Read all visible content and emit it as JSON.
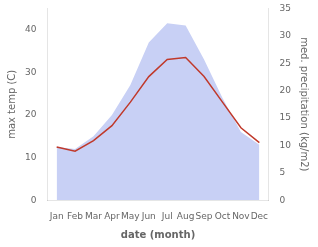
{
  "chart_data": {
    "type": "line",
    "categories": [
      "Jan",
      "Feb",
      "Mar",
      "Apr",
      "May",
      "Jun",
      "Jul",
      "Aug",
      "Sep",
      "Oct",
      "Nov",
      "Dec"
    ],
    "series": [
      {
        "type": "area",
        "color": "#c8d0f5",
        "values": [
          12.5,
          12.0,
          15.0,
          20.0,
          27.0,
          37.0,
          41.5,
          41.0,
          33.0,
          24.0,
          16.0,
          13.0
        ]
      },
      {
        "type": "line",
        "color": "#c0392b",
        "values": [
          12.5,
          11.5,
          14.0,
          17.5,
          23.0,
          29.0,
          33.0,
          33.5,
          29.0,
          23.0,
          17.0,
          13.5
        ]
      }
    ],
    "xlabel": "date (month)",
    "ylabel": "max temp (C)",
    "y2label": "med. precipitation (kg/m2)",
    "ylim": [
      0,
      45
    ],
    "yticks": [
      0,
      10,
      20,
      30,
      40
    ],
    "y2lim": [
      0,
      35
    ],
    "y2ticks": [
      0,
      5,
      10,
      15,
      20,
      25,
      30,
      35
    ],
    "grid": false
  }
}
